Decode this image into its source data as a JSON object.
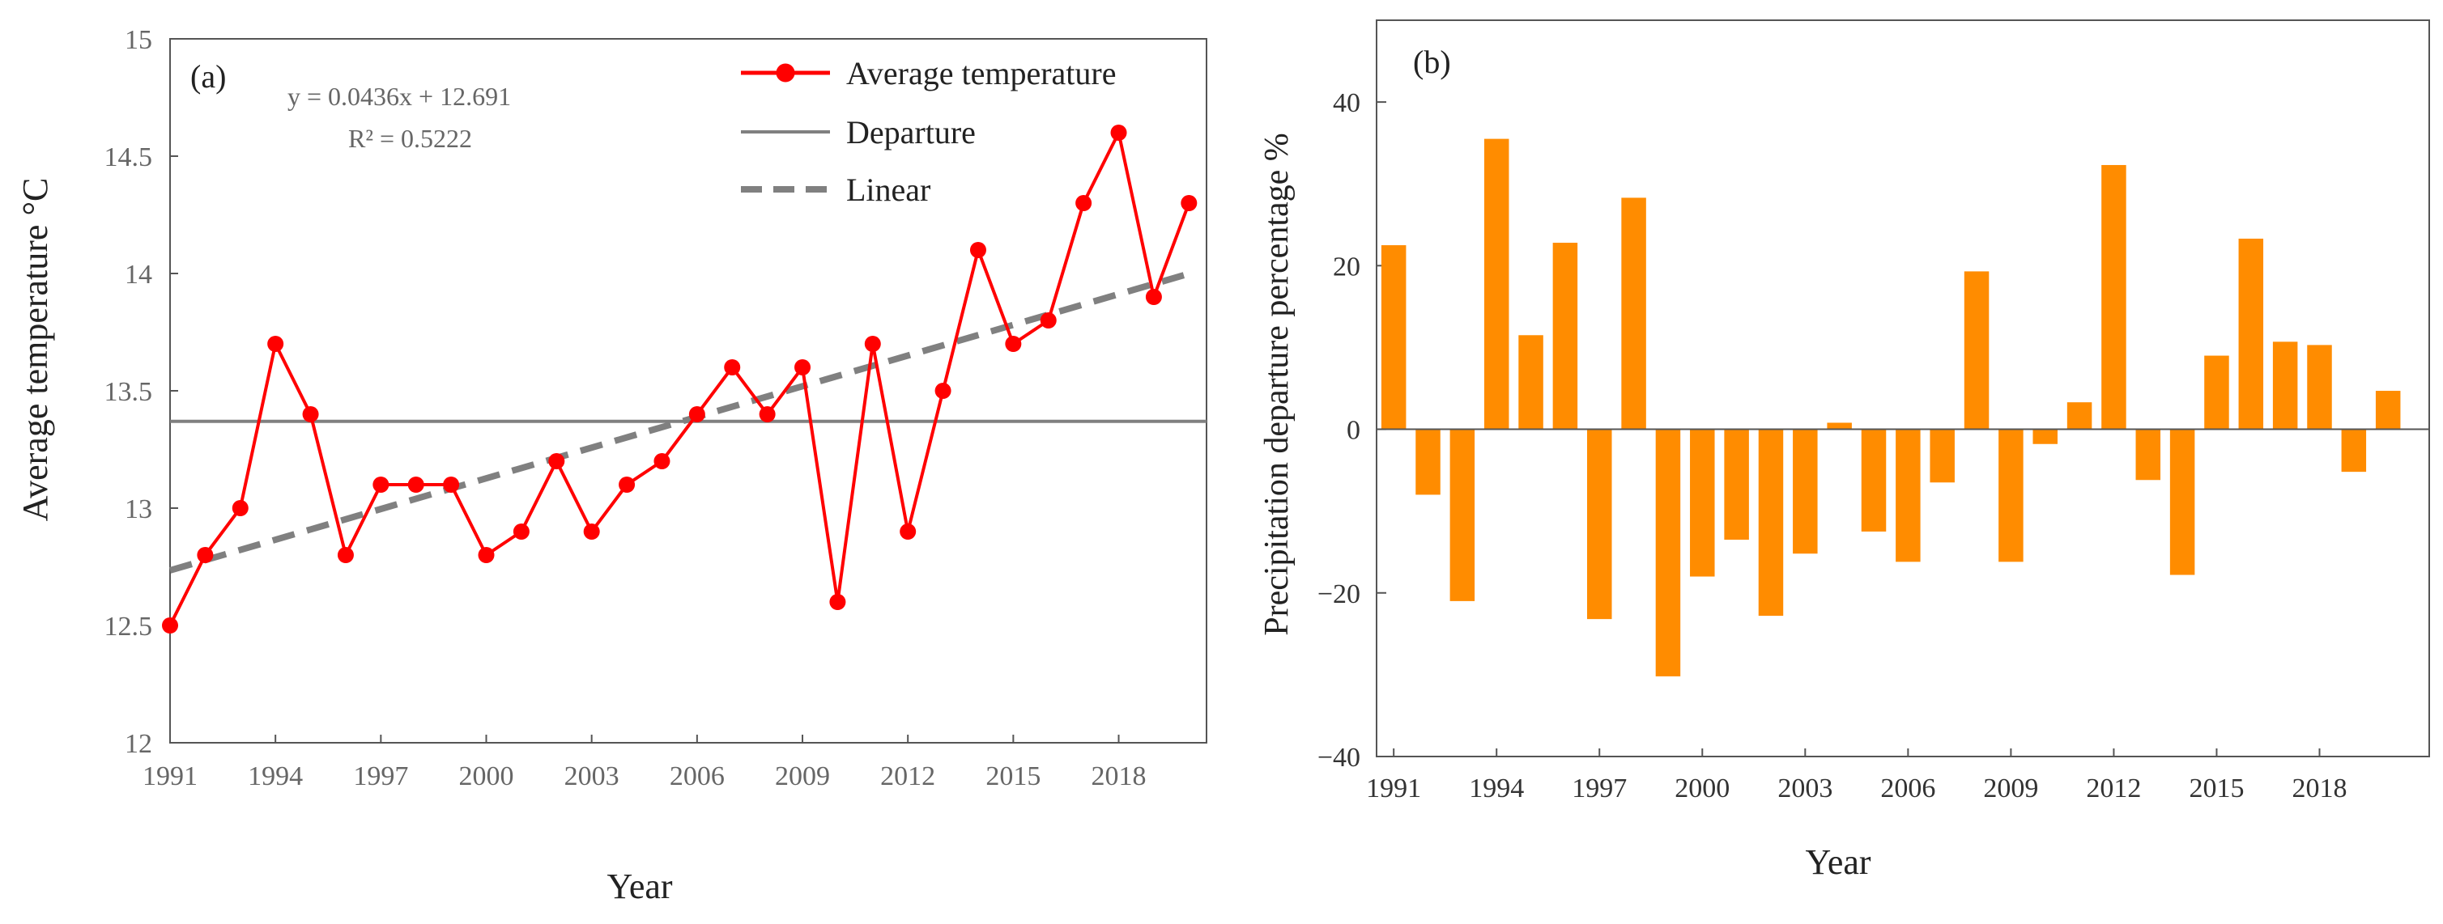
{
  "chart_data": [
    {
      "type": "line",
      "panel_label": "(a)",
      "xlabel": "Year",
      "ylabel": "Average temperature °C",
      "ylim": [
        12,
        15
      ],
      "y_ticks": [
        12,
        12.5,
        13,
        13.5,
        14,
        14.5,
        15
      ],
      "y_tick_labels": [
        "12",
        "12.5",
        "13",
        "13.5",
        "14",
        "14.5",
        "15"
      ],
      "xlim": [
        1991,
        2020.5
      ],
      "x_ticks": [
        1991,
        1994,
        1997,
        2000,
        2003,
        2006,
        2009,
        2012,
        2015,
        2018
      ],
      "x_tick_labels": [
        "1991",
        "1994",
        "1997",
        "2000",
        "2003",
        "2006",
        "2009",
        "2012",
        "2015",
        "2018"
      ],
      "x": [
        1991,
        1992,
        1993,
        1994,
        1995,
        1996,
        1997,
        1998,
        1999,
        2000,
        2001,
        2002,
        2003,
        2004,
        2005,
        2006,
        2007,
        2008,
        2009,
        2010,
        2011,
        2012,
        2013,
        2014,
        2015,
        2016,
        2017,
        2018,
        2019,
        2020
      ],
      "series": [
        {
          "name": "Average temperature",
          "color": "#ff0000",
          "values": [
            12.5,
            12.8,
            13.0,
            13.7,
            13.4,
            12.8,
            13.1,
            13.1,
            13.1,
            12.8,
            12.9,
            13.2,
            12.9,
            13.1,
            13.2,
            13.4,
            13.6,
            13.4,
            13.6,
            12.6,
            13.7,
            12.9,
            13.5,
            14.1,
            13.7,
            13.8,
            14.3,
            14.6,
            13.9,
            14.3
          ]
        }
      ],
      "departure": {
        "name": "Departure",
        "value": 13.37,
        "color": "#808080"
      },
      "trend": {
        "name": "Linear",
        "slope": 0.0436,
        "intercept": 12.691,
        "color": "#808080",
        "equation": "y = 0.0436x + 12.691",
        "r2": "R² = 0.5222"
      },
      "legend_position": "top-right",
      "grid": false
    },
    {
      "type": "bar",
      "panel_label": "(b)",
      "xlabel": "Year",
      "ylabel": "Precipitation departure percentage %",
      "ylim": [
        -40,
        50
      ],
      "y_ticks": [
        -40,
        -20,
        0,
        20,
        40
      ],
      "y_tick_labels": [
        "−40",
        "−20",
        "0",
        "20",
        "40"
      ],
      "xlim": [
        1990.5,
        2021.2
      ],
      "x_ticks": [
        1991,
        1994,
        1997,
        2000,
        2003,
        2006,
        2009,
        2012,
        2015,
        2018
      ],
      "x_tick_labels": [
        "1991",
        "1994",
        "1997",
        "2000",
        "2003",
        "2006",
        "2009",
        "2012",
        "2015",
        "2018"
      ],
      "x": [
        1991,
        1992,
        1993,
        1994,
        1995,
        1996,
        1997,
        1998,
        1999,
        2000,
        2001,
        2002,
        2003,
        2004,
        2005,
        2006,
        2007,
        2008,
        2009,
        2010,
        2011,
        2012,
        2013,
        2014,
        2015,
        2016,
        2017,
        2018,
        2019,
        2020
      ],
      "values": [
        22.5,
        -8.0,
        -21.0,
        35.5,
        11.5,
        22.8,
        -23.2,
        28.3,
        -30.2,
        -18.0,
        -13.5,
        -22.8,
        -15.2,
        0.8,
        -12.5,
        -16.2,
        -6.5,
        19.3,
        -16.2,
        -1.8,
        3.3,
        32.3,
        -6.2,
        -17.8,
        9.0,
        23.3,
        10.7,
        10.3,
        -5.2,
        4.7
      ],
      "bar_color": "#ff8c00",
      "grid": false
    }
  ]
}
